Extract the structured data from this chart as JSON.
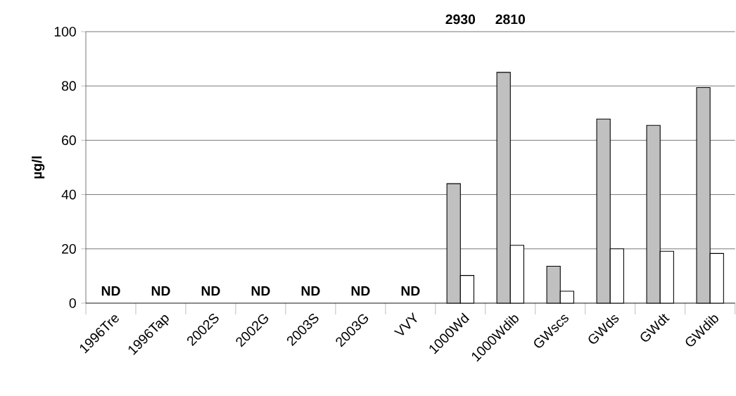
{
  "chart_data": {
    "type": "bar",
    "ylabel": "µg/l",
    "categories": [
      "1996Tre",
      "1996Tap",
      "2002S",
      "2002G",
      "2003S",
      "2003G",
      "VVY",
      "1000Wd",
      "1000Wdib",
      "GWscs",
      "GWds",
      "GWdt",
      "GWdib"
    ],
    "series": [
      {
        "color": "#c0c0c0",
        "values": [
          null,
          null,
          null,
          null,
          null,
          null,
          null,
          44,
          85,
          13.6,
          67.8,
          65.5,
          79.4
        ]
      },
      {
        "color": "#ffffff",
        "values": [
          null,
          null,
          null,
          null,
          null,
          null,
          null,
          10.2,
          21.3,
          4.4,
          20,
          19.1,
          18.3
        ]
      }
    ],
    "ylim": [
      0,
      100
    ],
    "yticks": [
      0,
      20,
      40,
      60,
      80,
      100
    ],
    "grid": "y",
    "annotations": [
      "ND",
      "ND",
      "ND",
      "ND",
      "ND",
      "ND",
      "ND",
      "2930",
      "2810"
    ]
  }
}
